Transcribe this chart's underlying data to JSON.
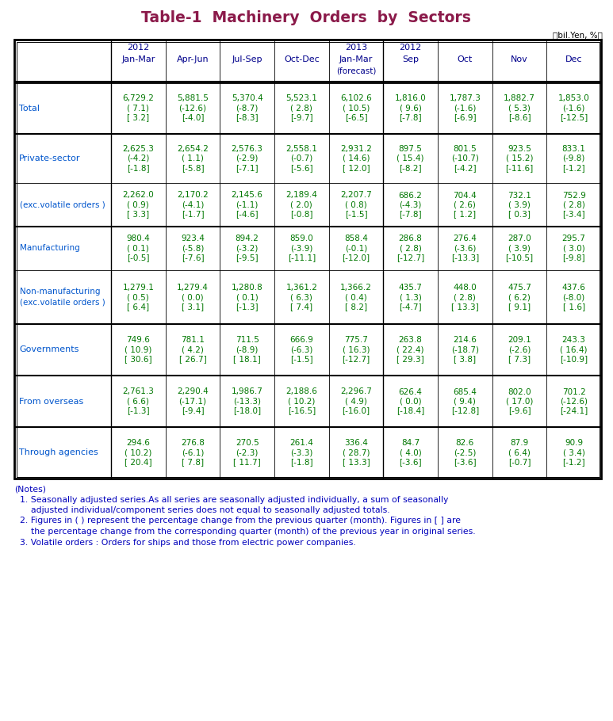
{
  "title": "Table-1  Machinery  Orders  by  Sectors",
  "title_color": "#8B1A4A",
  "unit_text": "（bil.Yen, %）",
  "col_headers": [
    [
      "2012",
      "Jan-Mar",
      ""
    ],
    [
      "",
      "Apr-Jun",
      ""
    ],
    [
      "",
      "Jul-Sep",
      ""
    ],
    [
      "",
      "Oct-Dec",
      ""
    ],
    [
      "2013",
      "Jan-Mar",
      "(forecast)"
    ],
    [
      "2012",
      "Sep",
      ""
    ],
    [
      "",
      "Oct",
      ""
    ],
    [
      "",
      "Nov",
      ""
    ],
    [
      "",
      "Dec",
      ""
    ]
  ],
  "row_labels": [
    "Total",
    "Private-sector",
    "(exc.volatile orders )",
    "Manufacturing",
    "Non-manufacturing\n(exc.volatile orders )",
    "Governments",
    "From overseas",
    "Through agencies"
  ],
  "label_color": "#0055CC",
  "data_color": "#007700",
  "header_color": "#00008B",
  "notes_color": "#0000BB",
  "table_data": [
    [
      [
        "6,729.2",
        "( 7.1)",
        "[ 3.2]"
      ],
      [
        "5,881.5",
        "(-12.6)",
        "[-4.0]"
      ],
      [
        "5,370.4",
        "(-8.7)",
        "[-8.3]"
      ],
      [
        "5,523.1",
        "( 2.8)",
        "[-9.7]"
      ],
      [
        "6,102.6",
        "( 10.5)",
        "[-6.5]"
      ],
      [
        "1,816.0",
        "( 9.6)",
        "[-7.8]"
      ],
      [
        "1,787.3",
        "(-1.6)",
        "[-6.9]"
      ],
      [
        "1,882.7",
        "( 5.3)",
        "[-8.6]"
      ],
      [
        "1,853.0",
        "(-1.6)",
        "[-12.5]"
      ]
    ],
    [
      [
        "2,625.3",
        "(-4.2)",
        "[-1.8]"
      ],
      [
        "2,654.2",
        "( 1.1)",
        "[-5.8]"
      ],
      [
        "2,576.3",
        "(-2.9)",
        "[-7.1]"
      ],
      [
        "2,558.1",
        "(-0.7)",
        "[-5.6]"
      ],
      [
        "2,931.2",
        "( 14.6)",
        "[ 12.0]"
      ],
      [
        "897.5",
        "( 15.4)",
        "[-8.2]"
      ],
      [
        "801.5",
        "(-10.7)",
        "[-4.2]"
      ],
      [
        "923.5",
        "( 15.2)",
        "[-11.6]"
      ],
      [
        "833.1",
        "(-9.8)",
        "[-1.2]"
      ]
    ],
    [
      [
        "2,262.0",
        "( 0.9)",
        "[ 3.3]"
      ],
      [
        "2,170.2",
        "(-4.1)",
        "[-1.7]"
      ],
      [
        "2,145.6",
        "(-1.1)",
        "[-4.6]"
      ],
      [
        "2,189.4",
        "( 2.0)",
        "[-0.8]"
      ],
      [
        "2,207.7",
        "( 0.8)",
        "[-1.5]"
      ],
      [
        "686.2",
        "(-4.3)",
        "[-7.8]"
      ],
      [
        "704.4",
        "( 2.6)",
        "[ 1.2]"
      ],
      [
        "732.1",
        "( 3.9)",
        "[ 0.3]"
      ],
      [
        "752.9",
        "( 2.8)",
        "[-3.4]"
      ]
    ],
    [
      [
        "980.4",
        "( 0.1)",
        "[-0.5]"
      ],
      [
        "923.4",
        "(-5.8)",
        "[-7.6]"
      ],
      [
        "894.2",
        "(-3.2)",
        "[-9.5]"
      ],
      [
        "859.0",
        "(-3.9)",
        "[-11.1]"
      ],
      [
        "858.4",
        "(-0.1)",
        "[-12.0]"
      ],
      [
        "286.8",
        "( 2.8)",
        "[-12.7]"
      ],
      [
        "276.4",
        "(-3.6)",
        "[-13.3]"
      ],
      [
        "287.0",
        "( 3.9)",
        "[-10.5]"
      ],
      [
        "295.7",
        "( 3.0)",
        "[-9.8]"
      ]
    ],
    [
      [
        "1,279.1",
        "( 0.5)",
        "[ 6.4]"
      ],
      [
        "1,279.4",
        "( 0.0)",
        "[ 3.1]"
      ],
      [
        "1,280.8",
        "( 0.1)",
        "[-1.3]"
      ],
      [
        "1,361.2",
        "( 6.3)",
        "[ 7.4]"
      ],
      [
        "1,366.2",
        "( 0.4)",
        "[ 8.2]"
      ],
      [
        "435.7",
        "( 1.3)",
        "[-4.7]"
      ],
      [
        "448.0",
        "( 2.8)",
        "[ 13.3]"
      ],
      [
        "475.7",
        "( 6.2)",
        "[ 9.1]"
      ],
      [
        "437.6",
        "(-8.0)",
        "[ 1.6]"
      ]
    ],
    [
      [
        "749.6",
        "( 10.9)",
        "[ 30.6]"
      ],
      [
        "781.1",
        "( 4.2)",
        "[ 26.7]"
      ],
      [
        "711.5",
        "(-8.9)",
        "[ 18.1]"
      ],
      [
        "666.9",
        "(-6.3)",
        "[-1.5]"
      ],
      [
        "775.7",
        "( 16.3)",
        "[-12.7]"
      ],
      [
        "263.8",
        "( 22.4)",
        "[ 29.3]"
      ],
      [
        "214.6",
        "(-18.7)",
        "[ 3.8]"
      ],
      [
        "209.1",
        "(-2.6)",
        "[ 7.3]"
      ],
      [
        "243.3",
        "( 16.4)",
        "[-10.9]"
      ]
    ],
    [
      [
        "2,761.3",
        "( 6.6)",
        "[-1.3]"
      ],
      [
        "2,290.4",
        "(-17.1)",
        "[-9.4]"
      ],
      [
        "1,986.7",
        "(-13.3)",
        "[-18.0]"
      ],
      [
        "2,188.6",
        "( 10.2)",
        "[-16.5]"
      ],
      [
        "2,296.7",
        "( 4.9)",
        "[-16.0]"
      ],
      [
        "626.4",
        "( 0.0)",
        "[-18.4]"
      ],
      [
        "685.4",
        "( 9.4)",
        "[-12.8]"
      ],
      [
        "802.0",
        "( 17.0)",
        "[-9.6]"
      ],
      [
        "701.2",
        "(-12.6)",
        "[-24.1]"
      ]
    ],
    [
      [
        "294.6",
        "( 10.2)",
        "[ 20.4]"
      ],
      [
        "276.8",
        "(-6.1)",
        "[ 7.8]"
      ],
      [
        "270.5",
        "(-2.3)",
        "[ 11.7]"
      ],
      [
        "261.4",
        "(-3.3)",
        "[-1.8]"
      ],
      [
        "336.4",
        "( 28.7)",
        "[ 13.3]"
      ],
      [
        "84.7",
        "( 4.0)",
        "[-3.6]"
      ],
      [
        "82.6",
        "(-2.5)",
        "[-3.6]"
      ],
      [
        "87.9",
        "( 6.4)",
        "[-0.7]"
      ],
      [
        "90.9",
        "( 3.4)",
        "[-1.2]"
      ]
    ]
  ],
  "notes": [
    "(Notes)",
    "  1. Seasonally adjusted series.As all series are seasonally adjusted individually, a sum of seasonally",
    "      adjusted individual/component series does not equal to seasonally adjusted totals.",
    "  2. Figures in ( ) represent the percentage change from the previous quarter (month). Figures in [ ] are",
    "      the percentage change from the corresponding quarter (month) of the previous year in original series.",
    "  3. Volatile orders : Orders for ships and those from electric power companies."
  ]
}
